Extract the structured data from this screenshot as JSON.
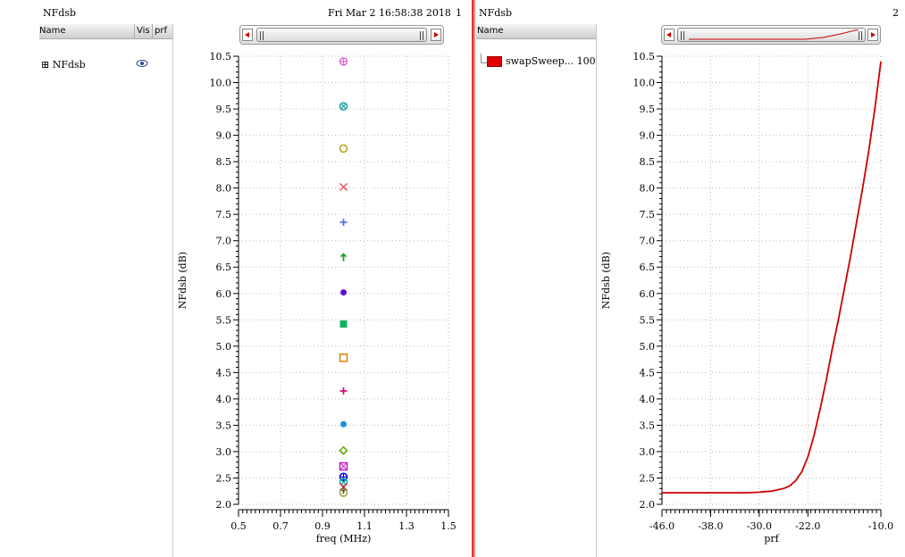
{
  "left_panel": {
    "title": "NFdsb",
    "timestamp": "Fri Mar 2 16:58:38 2018",
    "panel_number": "1",
    "columns": {
      "name": "Name",
      "vis": "Vis",
      "prf": "prf"
    },
    "tree_item": {
      "expander": "⊞",
      "label": "NFdsb",
      "vis_icon": "eye-icon"
    }
  },
  "right_panel": {
    "title": "NFdsb",
    "panel_number": "2",
    "columns": {
      "name": "Name"
    },
    "legend_item": {
      "label": "swapSweep... 100",
      "color": "#e00000"
    }
  },
  "chart_data": [
    {
      "type": "scatter",
      "xlabel": "freq (MHz)",
      "ylabel": "NFdsb (dB)",
      "xlim": [
        0.5,
        1.5
      ],
      "ylim": [
        2.0,
        10.5
      ],
      "xticks": [
        "0.5",
        "0.7",
        "0.9",
        "1.1",
        "1.3",
        "1.5"
      ],
      "yticks": [
        "2.0",
        "2.5",
        "3.0",
        "3.5",
        "4.0",
        "4.5",
        "5.0",
        "5.5",
        "6.0",
        "6.5",
        "7.0",
        "7.5",
        "8.0",
        "8.5",
        "9.0",
        "9.5",
        "10.0",
        "10.5"
      ],
      "grid": true,
      "points": [
        {
          "x": 1.0,
          "y": 10.4,
          "marker": "circle-plus",
          "color": "#e066e0"
        },
        {
          "x": 1.0,
          "y": 9.55,
          "marker": "circle-x",
          "color": "#20a0a0"
        },
        {
          "x": 1.0,
          "y": 8.75,
          "marker": "circle",
          "color": "#b0a020"
        },
        {
          "x": 1.0,
          "y": 8.02,
          "marker": "x",
          "color": "#e06060"
        },
        {
          "x": 1.0,
          "y": 7.35,
          "marker": "plus",
          "color": "#6070e0"
        },
        {
          "x": 1.0,
          "y": 6.68,
          "marker": "arrow",
          "color": "#20a020"
        },
        {
          "x": 1.0,
          "y": 6.02,
          "marker": "dot",
          "color": "#6010d0"
        },
        {
          "x": 1.0,
          "y": 5.42,
          "marker": "square-filled",
          "color": "#10b060"
        },
        {
          "x": 1.0,
          "y": 4.78,
          "marker": "square",
          "color": "#e08000"
        },
        {
          "x": 1.0,
          "y": 4.15,
          "marker": "plus",
          "color": "#d01070"
        },
        {
          "x": 1.0,
          "y": 3.52,
          "marker": "dot",
          "color": "#2090e0"
        },
        {
          "x": 1.0,
          "y": 3.02,
          "marker": "diamond",
          "color": "#60a000"
        },
        {
          "x": 1.0,
          "y": 2.72,
          "marker": "square-x",
          "color": "#c020c0"
        },
        {
          "x": 1.0,
          "y": 2.52,
          "marker": "circle-plus",
          "color": "#0000e0"
        },
        {
          "x": 1.0,
          "y": 2.42,
          "marker": "circle-x",
          "color": "#00a0a0"
        },
        {
          "x": 1.0,
          "y": 2.33,
          "marker": "x",
          "color": "#d03030"
        },
        {
          "x": 1.0,
          "y": 2.27,
          "marker": "plus",
          "color": "#505050"
        },
        {
          "x": 1.0,
          "y": 2.22,
          "marker": "circle",
          "color": "#a0a040"
        }
      ]
    },
    {
      "type": "line",
      "xlabel": "prf",
      "ylabel": "NFdsb (dB)",
      "xlim": [
        -46.0,
        -10.0
      ],
      "ylim": [
        2.0,
        10.5
      ],
      "xticks": [
        "-46.0",
        "-38.0",
        "-30.0",
        "-22.0",
        "-10.0"
      ],
      "yticks": [
        "2.0",
        "2.5",
        "3.0",
        "3.5",
        "4.0",
        "4.5",
        "5.0",
        "5.5",
        "6.0",
        "6.5",
        "7.0",
        "7.5",
        "8.0",
        "8.5",
        "9.0",
        "9.5",
        "10.0",
        "10.5"
      ],
      "grid": true,
      "series": [
        {
          "name": "swapSweep... 100",
          "color": "#cc0000",
          "x": [
            -46,
            -44,
            -42,
            -40,
            -38,
            -36,
            -34,
            -32,
            -30,
            -28,
            -26,
            -25,
            -24,
            -23,
            -22,
            -21,
            -20,
            -19,
            -18,
            -17,
            -16,
            -15,
            -14,
            -13,
            -12,
            -11,
            -10
          ],
          "y": [
            2.22,
            2.22,
            2.22,
            2.22,
            2.22,
            2.22,
            2.22,
            2.22,
            2.23,
            2.25,
            2.3,
            2.35,
            2.45,
            2.62,
            2.9,
            3.3,
            3.8,
            4.35,
            4.95,
            5.5,
            6.1,
            6.7,
            7.35,
            8.0,
            8.7,
            9.5,
            10.4
          ]
        }
      ]
    }
  ]
}
